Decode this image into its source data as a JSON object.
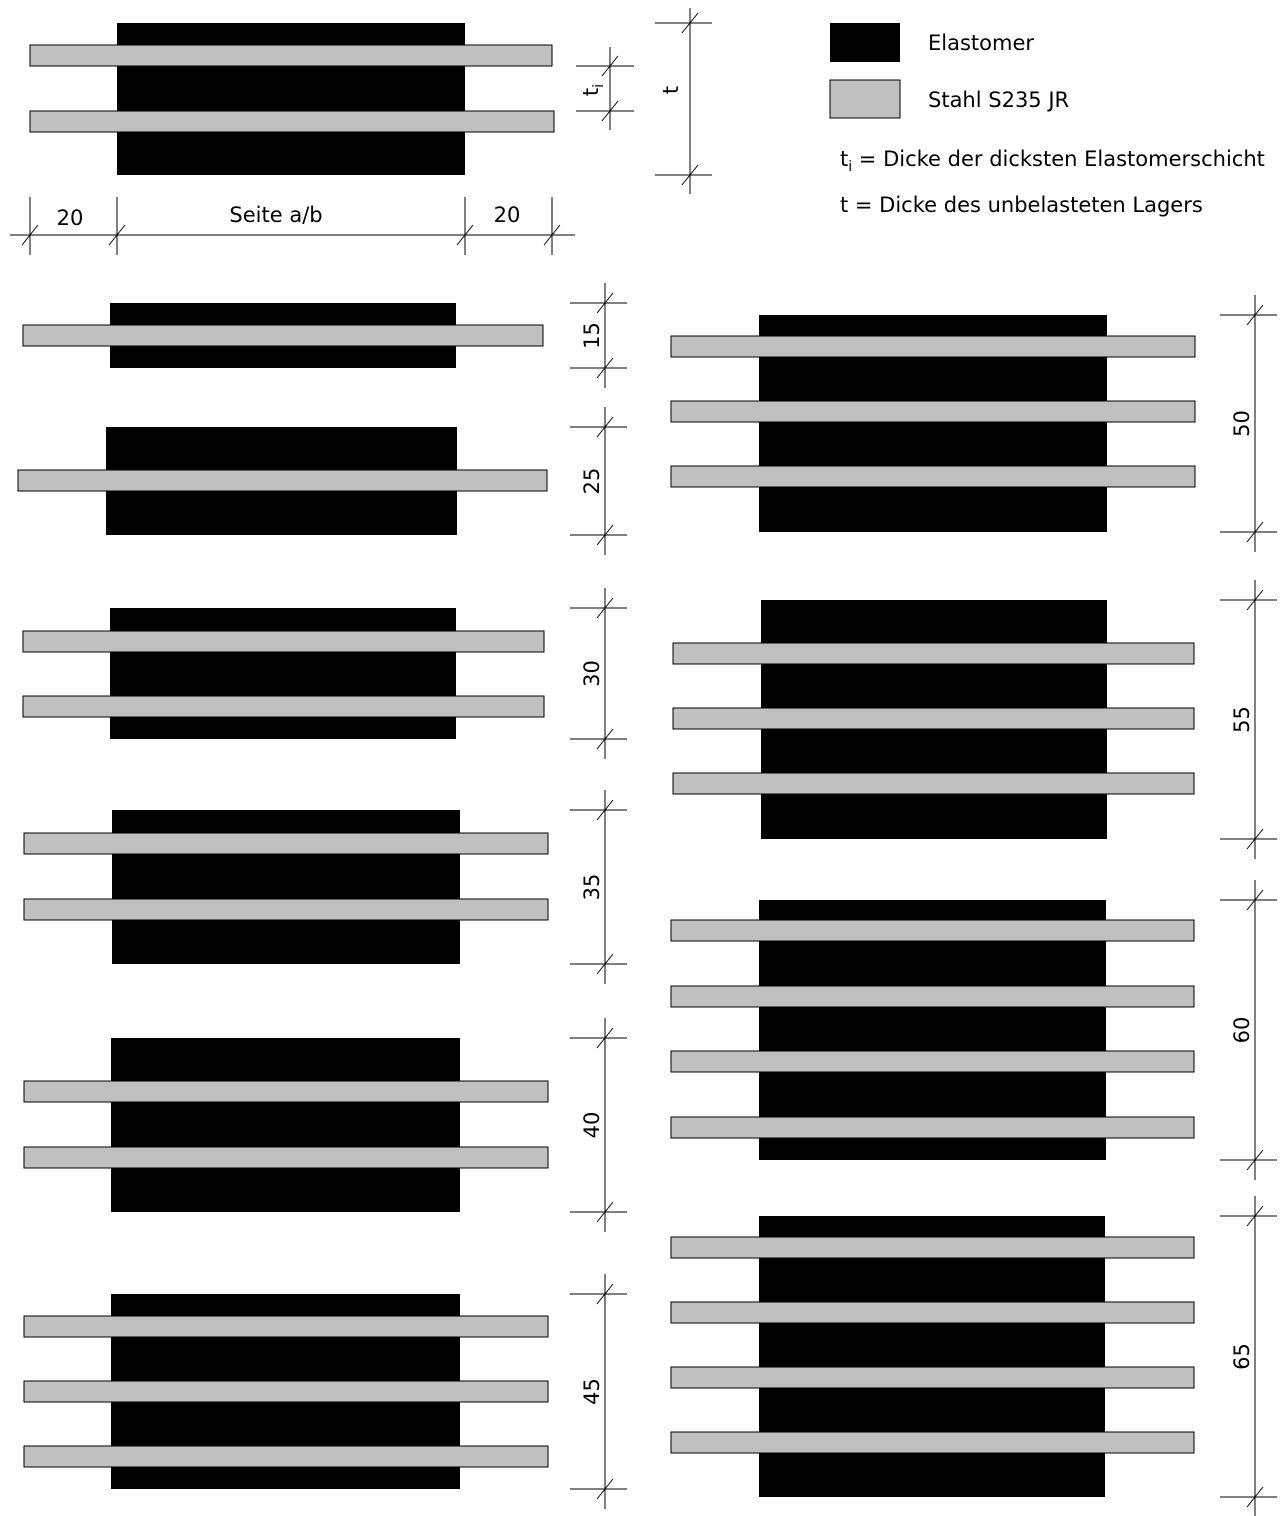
{
  "legend": {
    "elastomer_label": "Elastomer",
    "steel_label": "Stahl S235 JR",
    "ti_symbol": "t",
    "ti_subscript": "i",
    "ti_definition": " = Dicke der dicksten Elastomerschicht",
    "t_definition": "t = Dicke des unbelasteten Lagers",
    "elastomer_color": "#000000",
    "steel_color": "#c0c0c0"
  },
  "reference_drawing": {
    "edge_left_label": "20",
    "side_label": "Seite a/b",
    "edge_right_label": "20",
    "ti_label": "t",
    "ti_label_sub": "i",
    "t_label": "t"
  },
  "bearings": [
    {
      "thickness_label": "15",
      "steel_plates": 1
    },
    {
      "thickness_label": "25",
      "steel_plates": 1
    },
    {
      "thickness_label": "30",
      "steel_plates": 2
    },
    {
      "thickness_label": "35",
      "steel_plates": 2
    },
    {
      "thickness_label": "40",
      "steel_plates": 2
    },
    {
      "thickness_label": "45",
      "steel_plates": 3
    },
    {
      "thickness_label": "50",
      "steel_plates": 3
    },
    {
      "thickness_label": "55",
      "steel_plates": 3
    },
    {
      "thickness_label": "60",
      "steel_plates": 4
    },
    {
      "thickness_label": "65",
      "steel_plates": 4
    }
  ]
}
